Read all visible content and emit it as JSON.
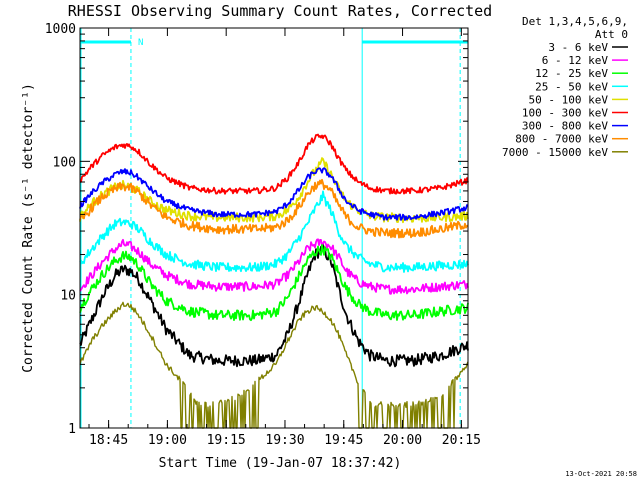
{
  "chart_data": {
    "type": "line",
    "title": "RHESSI Observing Summary Count Rates, Corrected",
    "xlabel": "Start Time (19-Jan-07 18:37:42)",
    "ylabel": "Corrected Count Rate (s⁻¹ detector⁻¹)",
    "x_unit": "minutes after 18:37:42",
    "xlim": [
      0,
      99
    ],
    "ylim": [
      1,
      1000
    ],
    "y_scale": "log",
    "grid": false,
    "x_ticks": [
      {
        "value": 7.3,
        "label": "18:45"
      },
      {
        "value": 22.3,
        "label": "19:00"
      },
      {
        "value": 37.3,
        "label": "19:15"
      },
      {
        "value": 52.3,
        "label": "19:30"
      },
      {
        "value": 67.3,
        "label": "19:45"
      },
      {
        "value": 82.3,
        "label": "20:00"
      },
      {
        "value": 97.3,
        "label": "20:15"
      }
    ],
    "y_ticks": [
      {
        "value": 1,
        "label": "1"
      },
      {
        "value": 10,
        "label": "10"
      },
      {
        "value": 100,
        "label": "100"
      },
      {
        "value": 1000,
        "label": "1000"
      }
    ],
    "legend_header": [
      "Det 1,3,4,5,6,9,",
      "Att 0"
    ],
    "legend_position": "right",
    "flag": {
      "label": "N",
      "color": "#00ffff",
      "bar1": [
        0,
        13
      ],
      "bar2": [
        72,
        99
      ],
      "lines": [
        13,
        72,
        97
      ]
    },
    "series": [
      {
        "name": "3 - 6 keV",
        "color": "#000000",
        "x": [
          0,
          3,
          6,
          9,
          11,
          13,
          15,
          18,
          22,
          28,
          35,
          45,
          50,
          53,
          56,
          58,
          60,
          62,
          64,
          66,
          68,
          71,
          74,
          78,
          85,
          92,
          99
        ],
        "values": [
          4.2,
          6.5,
          10,
          14,
          15.5,
          15,
          13,
          9,
          5.5,
          3.5,
          3.2,
          3.2,
          3.5,
          5,
          9,
          14,
          20,
          22,
          18,
          11,
          7,
          4.5,
          3.5,
          3.2,
          3.2,
          3.5,
          4.2
        ]
      },
      {
        "name": "6 - 12 keV",
        "color": "#ff00ff",
        "x": [
          0,
          3,
          6,
          9,
          11,
          13,
          15,
          18,
          22,
          28,
          35,
          45,
          50,
          53,
          56,
          58,
          60,
          62,
          64,
          66,
          68,
          71,
          74,
          78,
          85,
          92,
          99
        ],
        "values": [
          11,
          14,
          18,
          22,
          24,
          23,
          21,
          17,
          14,
          12,
          11.5,
          11.5,
          12,
          14,
          18,
          22,
          24,
          25,
          23,
          19,
          15,
          12.5,
          11.5,
          11,
          11,
          11.5,
          12
        ]
      },
      {
        "name": "12 - 25 keV",
        "color": "#00ff00",
        "x": [
          0,
          3,
          6,
          9,
          11,
          13,
          15,
          18,
          22,
          28,
          35,
          45,
          50,
          53,
          56,
          58,
          60,
          62,
          64,
          66,
          68,
          71,
          74,
          78,
          85,
          92,
          99
        ],
        "values": [
          8,
          11,
          14.5,
          18,
          19.5,
          19,
          16.5,
          12,
          9,
          7.5,
          7,
          7,
          7.5,
          9.5,
          14,
          18,
          21,
          22,
          19.5,
          14.5,
          11,
          8.5,
          7.5,
          7,
          7,
          7.5,
          8
        ]
      },
      {
        "name": "25 - 50 keV",
        "color": "#00ffff",
        "x": [
          0,
          3,
          6,
          9,
          11,
          13,
          15,
          18,
          22,
          28,
          35,
          45,
          50,
          53,
          56,
          58,
          60,
          62,
          64,
          66,
          68,
          71,
          74,
          78,
          85,
          92,
          99
        ],
        "values": [
          17,
          22,
          28,
          34,
          35,
          34,
          31,
          25,
          20,
          17,
          16,
          16,
          17,
          20,
          27,
          34,
          44,
          55,
          43,
          30,
          23,
          19,
          17,
          16,
          16,
          16.5,
          17
        ]
      },
      {
        "name": "50 - 100 keV",
        "color": "#e0e000",
        "x": [
          0,
          3,
          6,
          9,
          11,
          13,
          15,
          18,
          22,
          28,
          35,
          45,
          50,
          53,
          56,
          58,
          60,
          62,
          64,
          66,
          68,
          71,
          74,
          78,
          85,
          92,
          99
        ],
        "values": [
          38,
          48,
          57,
          64,
          66,
          64,
          59,
          50,
          43,
          39,
          38,
          38,
          39,
          43,
          55,
          70,
          85,
          100,
          80,
          62,
          50,
          43,
          39,
          38,
          37.5,
          38,
          39
        ]
      },
      {
        "name": "100 - 300 keV",
        "color": "#ff0000",
        "x": [
          0,
          3,
          6,
          9,
          11,
          13,
          15,
          18,
          22,
          28,
          35,
          45,
          50,
          53,
          56,
          58,
          60,
          62,
          64,
          66,
          68,
          71,
          74,
          78,
          85,
          92,
          99
        ],
        "values": [
          72,
          92,
          112,
          128,
          133,
          130,
          118,
          95,
          75,
          63,
          60,
          60,
          63,
          75,
          100,
          130,
          150,
          155,
          135,
          105,
          85,
          70,
          63,
          60,
          60,
          63,
          72
        ]
      },
      {
        "name": "300 - 800 keV",
        "color": "#0000ff",
        "x": [
          0,
          3,
          6,
          9,
          11,
          13,
          15,
          18,
          22,
          28,
          35,
          45,
          50,
          53,
          56,
          58,
          60,
          62,
          64,
          66,
          68,
          71,
          74,
          78,
          85,
          92,
          99
        ],
        "values": [
          46,
          58,
          70,
          80,
          84,
          82,
          75,
          62,
          50,
          43,
          40,
          40,
          42,
          48,
          62,
          75,
          84,
          86,
          78,
          62,
          50,
          43,
          40,
          38,
          38,
          41,
          45
        ]
      },
      {
        "name": "800 - 7000 keV",
        "color": "#ff8c00",
        "x": [
          0,
          3,
          6,
          9,
          11,
          13,
          15,
          18,
          22,
          28,
          35,
          45,
          50,
          53,
          56,
          58,
          60,
          62,
          64,
          66,
          68,
          71,
          74,
          78,
          85,
          92,
          99
        ],
        "values": [
          35,
          45,
          55,
          62,
          65,
          63,
          58,
          47,
          38,
          33,
          31,
          31,
          32,
          36,
          46,
          57,
          66,
          68,
          60,
          47,
          38,
          32,
          30,
          29,
          29,
          31,
          34
        ]
      },
      {
        "name": "7000 - 15000 keV",
        "color": "#808000",
        "x": [
          0,
          3,
          6,
          9,
          11,
          13,
          15,
          18,
          22,
          26,
          30,
          35,
          40,
          45,
          50,
          53,
          56,
          58,
          60,
          62,
          64,
          66,
          68,
          71,
          74,
          78,
          85,
          92,
          99
        ],
        "values": [
          3,
          4.5,
          6,
          7.5,
          8.5,
          8.2,
          7,
          5,
          3,
          2.2,
          1.5,
          1.5,
          1.7,
          2.2,
          3,
          4.5,
          6.5,
          7.5,
          8,
          7.5,
          6.5,
          5,
          3.5,
          2.2,
          1.5,
          1.5,
          1.5,
          1.7,
          3
        ]
      }
    ]
  },
  "timestamp": "13-Oct-2021 20:58"
}
